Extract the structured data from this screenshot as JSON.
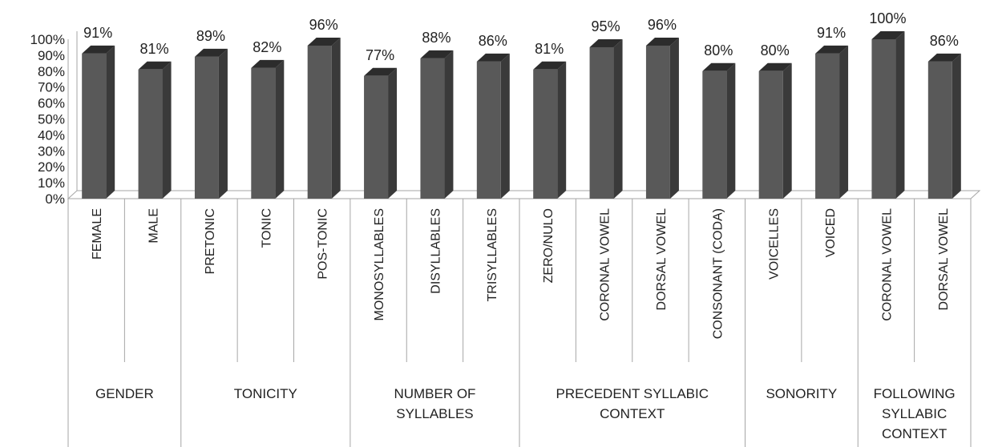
{
  "chart_data": {
    "type": "bar",
    "style": "3d-column",
    "bar_color": "#595959",
    "ylim": [
      0,
      100
    ],
    "yticks": [
      "0%",
      "10%",
      "20%",
      "30%",
      "40%",
      "50%",
      "60%",
      "70%",
      "80%",
      "90%",
      "100%"
    ],
    "categories": [
      "FEMALE",
      "MALE",
      "PRETONIC",
      "TONIC",
      "POS-TONIC",
      "MONOSYLLABLES",
      "DISYLLABLES",
      "TRISYLLABLES",
      "ZERO/NULO",
      "CORONAL VOWEL",
      "DORSAL VOWEL",
      "CONSONANT (CODA)",
      "VOICELLES",
      "VOICED",
      "CORONAL VOWEL",
      "DORSAL VOWEL"
    ],
    "values": [
      91,
      81,
      89,
      82,
      96,
      77,
      88,
      86,
      81,
      95,
      96,
      80,
      80,
      91,
      100,
      86
    ],
    "data_labels": [
      "91%",
      "81%",
      "89%",
      "82%",
      "96%",
      "77%",
      "88%",
      "86%",
      "81%",
      "95%",
      "96%",
      "80%",
      "80%",
      "91%",
      "100%",
      "86%"
    ],
    "groups": [
      {
        "lines": [
          "GENDER"
        ],
        "span": 2
      },
      {
        "lines": [
          "TONICITY"
        ],
        "span": 3
      },
      {
        "lines": [
          "NUMBER OF",
          "SYLLABLES"
        ],
        "span": 3
      },
      {
        "lines": [
          "PRECEDENT SYLLABIC",
          "CONTEXT"
        ],
        "span": 4
      },
      {
        "lines": [
          "SONORITY"
        ],
        "span": 2
      },
      {
        "lines": [
          "FOLLOWING",
          "SYLLABIC",
          "CONTEXT"
        ],
        "span": 2
      }
    ],
    "grid": false,
    "legend": "none"
  }
}
